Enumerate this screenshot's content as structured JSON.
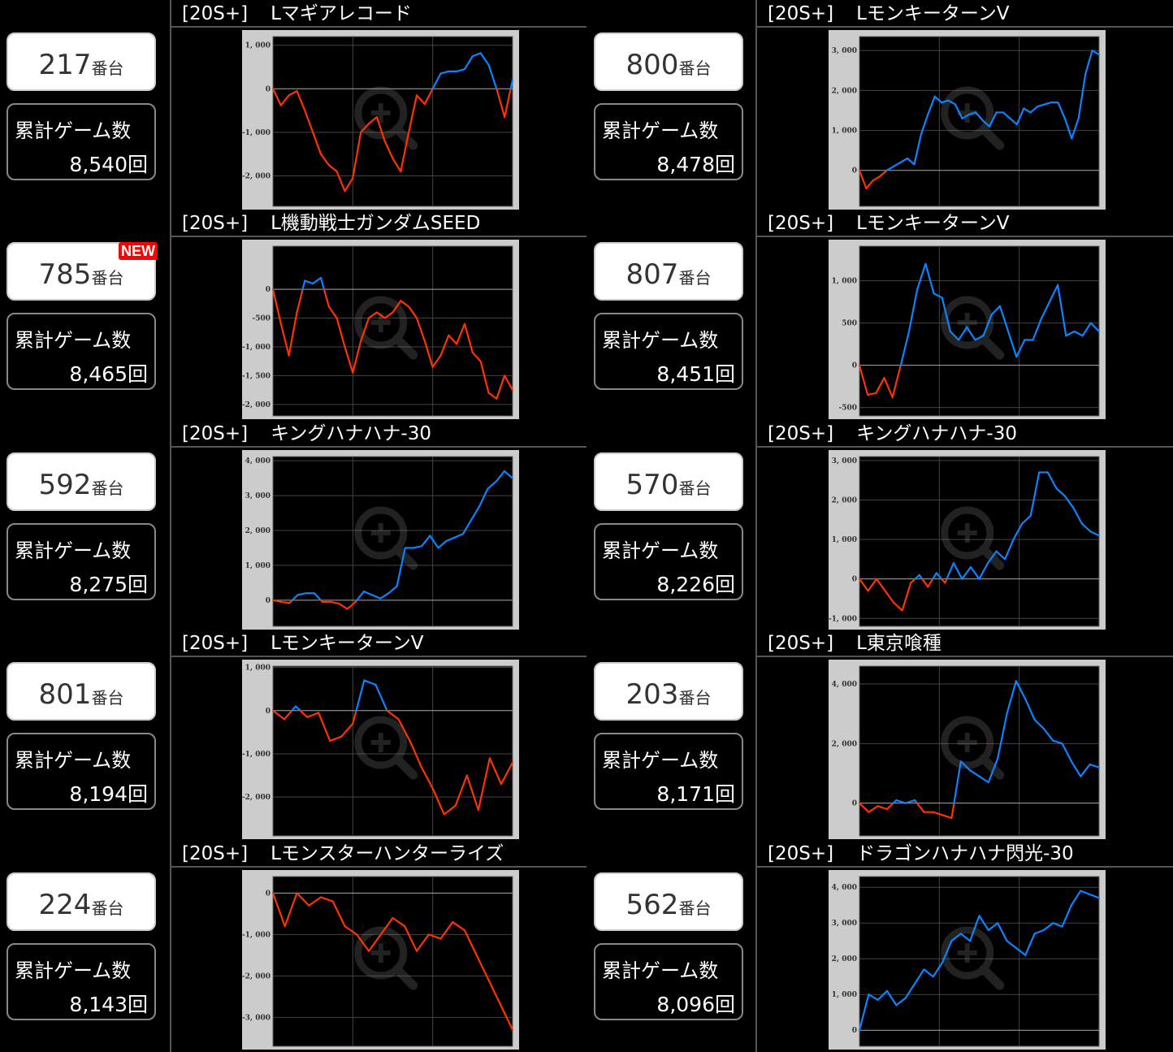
{
  "colors": {
    "positive": "#0a84ff",
    "negative": "#ff3300",
    "chart_bg": "#cccccc",
    "plot_bg": "#000000"
  },
  "unit_suffix": "番台",
  "stat_label": "累計ゲーム数",
  "tag": "[20S+]",
  "new_badge": "NEW",
  "watermark_icon": "zoom-in-icon",
  "machines": [
    {
      "unit": "217",
      "games": "8,540回",
      "name": "Lマギアレコード",
      "new": false
    },
    {
      "unit": "800",
      "games": "8,478回",
      "name": "LモンキーターンV",
      "new": false
    },
    {
      "unit": "785",
      "games": "8,465回",
      "name": "L機動戦士ガンダムSEED",
      "new": true
    },
    {
      "unit": "807",
      "games": "8,451回",
      "name": "LモンキーターンV",
      "new": false
    },
    {
      "unit": "592",
      "games": "8,275回",
      "name": "キングハナハナ-30",
      "new": false
    },
    {
      "unit": "570",
      "games": "8,226回",
      "name": "キングハナハナ-30",
      "new": false
    },
    {
      "unit": "801",
      "games": "8,194回",
      "name": "LモンキーターンV",
      "new": false
    },
    {
      "unit": "203",
      "games": "8,171回",
      "name": "L東京喰種",
      "new": false
    },
    {
      "unit": "224",
      "games": "8,143回",
      "name": "Lモンスターハンターライズ",
      "new": false
    },
    {
      "unit": "562",
      "games": "8,096回",
      "name": "ドラゴンハナハナ閃光-30",
      "new": false
    }
  ],
  "chart_data": [
    {
      "type": "line",
      "ylim": [
        -2700,
        1200
      ],
      "yticks": [
        1000,
        0,
        -1000,
        -2000
      ],
      "tick_labels": [
        "1, 000",
        "0",
        "-1, 000",
        "-2, 000"
      ],
      "grid": true,
      "values": [
        0,
        -380,
        -150,
        -50,
        -500,
        -1000,
        -1500,
        -1750,
        -1900,
        -2350,
        -2050,
        -1000,
        -800,
        -650,
        -1200,
        -1600,
        -1900,
        -1000,
        -150,
        -350,
        0,
        350,
        400,
        400,
        450,
        750,
        820,
        550,
        0,
        -650,
        200
      ]
    },
    {
      "type": "line",
      "ylim": [
        -900,
        3350
      ],
      "yticks": [
        3000,
        2000,
        1000,
        0
      ],
      "tick_labels": [
        "3, 000",
        "2, 000",
        "1, 000",
        "0"
      ],
      "grid": true,
      "values": [
        0,
        -450,
        -250,
        -150,
        0,
        100,
        200,
        300,
        150,
        900,
        1400,
        1850,
        1700,
        1750,
        1650,
        1300,
        1400,
        1450,
        1250,
        1100,
        1450,
        1450,
        1300,
        1150,
        1550,
        1450,
        1600,
        1650,
        1700,
        1700,
        1300,
        800,
        1300,
        2400,
        3000,
        2900
      ]
    },
    {
      "type": "line",
      "ylim": [
        -2200,
        750
      ],
      "yticks": [
        0,
        -500,
        -1000,
        -1500,
        -2000
      ],
      "tick_labels": [
        "0",
        "-500",
        "-1, 000",
        "-1, 500",
        "-2, 000"
      ],
      "grid": true,
      "values": [
        0,
        -600,
        -1150,
        -400,
        150,
        100,
        200,
        -300,
        -500,
        -1000,
        -1450,
        -900,
        -500,
        -400,
        -500,
        -400,
        -200,
        -300,
        -500,
        -900,
        -1350,
        -1150,
        -800,
        -950,
        -600,
        -1100,
        -1250,
        -1800,
        -1900,
        -1500,
        -1750
      ]
    },
    {
      "type": "line",
      "ylim": [
        -600,
        1410
      ],
      "yticks": [
        1000,
        500,
        0,
        -500
      ],
      "tick_labels": [
        "1, 000",
        "500",
        "0",
        "-500"
      ],
      "grid": true,
      "values": [
        0,
        -350,
        -330,
        -150,
        -380,
        0,
        400,
        900,
        1200,
        850,
        800,
        400,
        300,
        450,
        300,
        350,
        600,
        700,
        400,
        100,
        300,
        300,
        550,
        750,
        950,
        350,
        400,
        350,
        500,
        400
      ]
    },
    {
      "type": "line",
      "ylim": [
        -750,
        4120
      ],
      "yticks": [
        4000,
        3000,
        2000,
        1000,
        0
      ],
      "tick_labels": [
        "4, 000",
        "3, 000",
        "2, 000",
        "1, 000",
        "0"
      ],
      "grid": true,
      "values": [
        0,
        -50,
        -80,
        150,
        200,
        200,
        -50,
        -50,
        -100,
        -250,
        -50,
        250,
        150,
        50,
        200,
        400,
        1500,
        1500,
        1550,
        1850,
        1500,
        1700,
        1800,
        1900,
        2300,
        2700,
        3200,
        3400,
        3700,
        3500
      ]
    },
    {
      "type": "line",
      "ylim": [
        -1200,
        3100
      ],
      "yticks": [
        3000,
        2000,
        1000,
        0,
        -1000
      ],
      "tick_labels": [
        "3, 000",
        "2, 000",
        "1, 000",
        "0",
        "-1, 000"
      ],
      "grid": true,
      "values": [
        0,
        -300,
        0,
        -300,
        -600,
        -800,
        -100,
        100,
        -200,
        150,
        -100,
        400,
        0,
        300,
        0,
        400,
        700,
        500,
        1000,
        1400,
        1600,
        2700,
        2700,
        2300,
        2100,
        1800,
        1400,
        1200,
        1100
      ]
    },
    {
      "type": "line",
      "ylim": [
        -2900,
        1030
      ],
      "yticks": [
        1000,
        0,
        -1000,
        -2000
      ],
      "tick_labels": [
        "1, 000",
        "0",
        "-1, 000",
        "-2, 000"
      ],
      "grid": true,
      "values": [
        0,
        -200,
        100,
        -150,
        -50,
        -700,
        -600,
        -300,
        700,
        600,
        0,
        -200,
        -700,
        -1300,
        -1800,
        -2400,
        -2200,
        -1500,
        -2300,
        -1100,
        -1700,
        -1200
      ]
    },
    {
      "type": "line",
      "ylim": [
        -1100,
        4600
      ],
      "yticks": [
        4000,
        2000,
        0
      ],
      "tick_labels": [
        "4, 000",
        "2, 000",
        "0"
      ],
      "grid": true,
      "values": [
        0,
        -300,
        -100,
        -200,
        100,
        0,
        100,
        -300,
        -300,
        -400,
        -500,
        1400,
        1100,
        900,
        700,
        1500,
        3000,
        4100,
        3500,
        2800,
        2500,
        2100,
        2000,
        1400,
        900,
        1300,
        1200
      ]
    },
    {
      "type": "line",
      "ylim": [
        -3700,
        400
      ],
      "yticks": [
        0,
        -1000,
        -2000,
        -3000
      ],
      "tick_labels": [
        "0",
        "-1, 000",
        "-2, 000",
        "-3, 000"
      ],
      "grid": true,
      "values": [
        0,
        -800,
        0,
        -300,
        -100,
        -200,
        -800,
        -1000,
        -1400,
        -1000,
        -600,
        -800,
        -1400,
        -1000,
        -1100,
        -700,
        -900,
        -1500,
        -2100,
        -2700,
        -3300
      ]
    },
    {
      "type": "line",
      "ylim": [
        -450,
        4300
      ],
      "yticks": [
        4000,
        3000,
        2000,
        1000,
        0
      ],
      "tick_labels": [
        "4, 000",
        "3, 000",
        "2, 000",
        "1, 000",
        "0"
      ],
      "grid": true,
      "values": [
        0,
        1000,
        850,
        1100,
        700,
        900,
        1300,
        1700,
        1500,
        1900,
        2500,
        2700,
        2500,
        3200,
        2800,
        3000,
        2500,
        2300,
        2100,
        2700,
        2800,
        3000,
        2900,
        3500,
        3900,
        3800,
        3700
      ]
    }
  ]
}
